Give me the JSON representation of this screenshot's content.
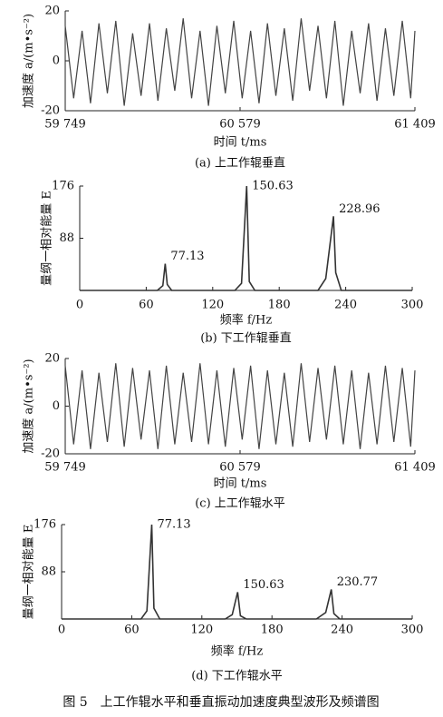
{
  "chart_data": [
    {
      "type": "line",
      "subtitle": "(a) 上工作辊垂直",
      "xlabel": "时间 t/ms",
      "ylabel": "加速度 a/(m•s⁻²)",
      "color": "#444444",
      "x": [
        59749,
        59789,
        59829,
        59869,
        59909,
        59949,
        59989,
        60029,
        60069,
        60109,
        60149,
        60189,
        60229,
        60269,
        60309,
        60349,
        60389,
        60429,
        60469,
        60509,
        60549,
        60589,
        60629,
        60669,
        60709,
        60749,
        60789,
        60829,
        60869,
        60909,
        60949,
        60989,
        61029,
        61069,
        61109,
        61149,
        61189,
        61229,
        61269,
        61309,
        61349,
        61389,
        61409
      ],
      "values": [
        14,
        -15,
        12,
        -17,
        15,
        -13,
        16,
        -18,
        11,
        -14,
        15,
        -16,
        13,
        -12,
        17,
        -15,
        12,
        -18,
        14,
        -13,
        16,
        -15,
        12,
        -17,
        15,
        -14,
        13,
        -16,
        17,
        -12,
        14,
        -15,
        16,
        -18,
        12,
        -13,
        15,
        -16,
        13,
        -14,
        16,
        -15,
        12
      ],
      "xlim": [
        59749,
        61409
      ],
      "xticks": [
        {
          "value": 59749,
          "label": "59 749"
        },
        {
          "value": 60579,
          "label": "60 579"
        },
        {
          "value": 61409,
          "label": "61 409"
        }
      ],
      "ylim": [
        -20,
        20
      ],
      "yticks": [
        -20,
        0,
        20
      ]
    },
    {
      "type": "line",
      "subtitle": "(b) 下工作辊垂直",
      "xlabel": "频率 f/Hz",
      "ylabel": "量纲一相对能量 E",
      "color": "#333333",
      "x": [
        0,
        70,
        75,
        77.13,
        79,
        83,
        140,
        146,
        150.63,
        153,
        158,
        215,
        222,
        228.96,
        231,
        236,
        300
      ],
      "values": [
        0,
        0,
        8,
        45,
        10,
        0,
        0,
        12,
        176,
        15,
        0,
        0,
        20,
        125,
        30,
        0,
        0
      ],
      "annotations": [
        {
          "x": 77.13,
          "y": 45,
          "label": "77.13"
        },
        {
          "x": 150.63,
          "y": 176,
          "label": "150.63"
        },
        {
          "x": 228.96,
          "y": 125,
          "label": "228.96"
        }
      ],
      "xlim": [
        0,
        300
      ],
      "xticks": [
        0,
        60,
        120,
        180,
        240,
        300
      ],
      "ylim": [
        0,
        176
      ],
      "yticks": [
        88,
        176
      ]
    },
    {
      "type": "line",
      "subtitle": "(c) 上工作辊水平",
      "xlabel": "时间 t/ms",
      "ylabel": "加速度 a/(m•s⁻²)",
      "color": "#444444",
      "x": [
        59749,
        59789,
        59829,
        59869,
        59909,
        59949,
        59989,
        60029,
        60069,
        60109,
        60149,
        60189,
        60229,
        60269,
        60309,
        60349,
        60389,
        60429,
        60469,
        60509,
        60549,
        60589,
        60629,
        60669,
        60709,
        60749,
        60789,
        60829,
        60869,
        60909,
        60949,
        60989,
        61029,
        61069,
        61109,
        61149,
        61189,
        61229,
        61269,
        61309,
        61349,
        61389,
        61409
      ],
      "values": [
        17,
        -16,
        15,
        -18,
        14,
        -15,
        18,
        -17,
        16,
        -14,
        15,
        -18,
        17,
        -16,
        14,
        -15,
        18,
        -16,
        15,
        -17,
        16,
        -14,
        17,
        -18,
        15,
        -16,
        14,
        -17,
        18,
        -15,
        16,
        -14,
        17,
        -16,
        15,
        -18,
        14,
        -16,
        17,
        -15,
        16,
        -17,
        15
      ],
      "xlim": [
        59749,
        61409
      ],
      "xticks": [
        {
          "value": 59749,
          "label": "59 749"
        },
        {
          "value": 60579,
          "label": "60 579"
        },
        {
          "value": 61409,
          "label": "61 409"
        }
      ],
      "ylim": [
        -20,
        20
      ],
      "yticks": [
        -20,
        0,
        20
      ]
    },
    {
      "type": "line",
      "subtitle": "(d) 下工作辊水平",
      "xlabel": "频率 f/Hz",
      "ylabel": "量纲一相对能量 E",
      "color": "#333333",
      "x": [
        0,
        68,
        73,
        77.13,
        79,
        84,
        140,
        146,
        150.63,
        153,
        158,
        218,
        226,
        230.77,
        233,
        238,
        300
      ],
      "values": [
        0,
        0,
        15,
        176,
        20,
        0,
        0,
        8,
        50,
        6,
        0,
        0,
        12,
        55,
        10,
        0,
        0
      ],
      "annotations": [
        {
          "x": 77.13,
          "y": 176,
          "label": "77.13"
        },
        {
          "x": 150.63,
          "y": 50,
          "label": "150.63"
        },
        {
          "x": 230.77,
          "y": 55,
          "label": "230.77"
        }
      ],
      "xlim": [
        0,
        300
      ],
      "xticks": [
        0,
        60,
        120,
        180,
        240,
        300
      ],
      "ylim": [
        0,
        176
      ],
      "yticks": [
        88,
        176
      ]
    }
  ],
  "caption": "图 5　上工作辊水平和垂直振动加速度典型波形及频谱图"
}
